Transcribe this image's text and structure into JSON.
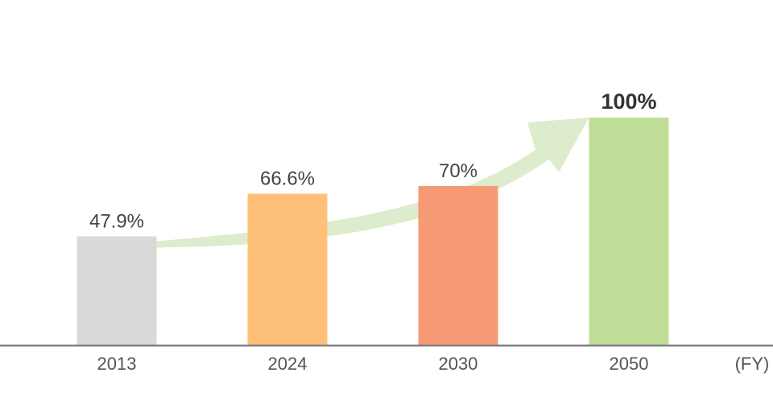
{
  "chart_data": {
    "type": "bar",
    "categories": [
      "2013",
      "2024",
      "2030",
      "2050"
    ],
    "values": [
      47.9,
      66.6,
      70,
      100
    ],
    "value_labels": [
      "47.9%",
      "66.6%",
      "70%",
      "100%"
    ],
    "colors": [
      "#d9d9d9",
      "#ffc179",
      "#f59a74",
      "#bfdd96"
    ],
    "x_unit": "(FY)",
    "ylim": [
      0,
      100
    ],
    "grid": false,
    "legend": "none",
    "trend_arrow_color": "#ddeccc"
  }
}
